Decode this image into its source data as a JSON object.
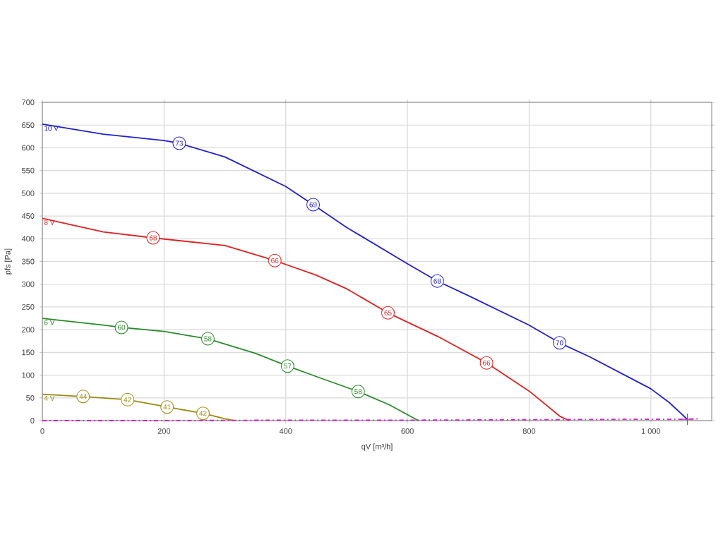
{
  "chart_data": {
    "type": "line",
    "xlabel": "qV [m³/h]",
    "ylabel": "pfs [Pa]",
    "xlim": [
      0,
      1100
    ],
    "ylim": [
      0,
      700
    ],
    "xticks": [
      0,
      200,
      400,
      600,
      800,
      {
        "value": 1000,
        "label": "1 000"
      }
    ],
    "yticks": [
      0,
      50,
      100,
      150,
      200,
      250,
      300,
      350,
      400,
      450,
      500,
      550,
      600,
      650,
      700
    ],
    "grid": true,
    "line_style": "solid",
    "series": [
      {
        "name": "10 V",
        "color": "#2020d0",
        "x": [
          0,
          100,
          200,
          225,
          300,
          400,
          445,
          500,
          600,
          649,
          700,
          800,
          850,
          900,
          1000,
          1030,
          1060
        ],
        "values": [
          652,
          630,
          616,
          610,
          580,
          515,
          475,
          425,
          345,
          307,
          275,
          210,
          171,
          140,
          70,
          40,
          3
        ]
      },
      {
        "name": "8 V",
        "color": "#e02020",
        "x": [
          0,
          100,
          182,
          300,
          382,
          450,
          500,
          568,
          650,
          730,
          800,
          850,
          866
        ],
        "values": [
          445,
          415,
          402,
          385,
          352,
          320,
          290,
          237,
          185,
          127,
          65,
          10,
          0
        ]
      },
      {
        "name": "6 V",
        "color": "#2a8a2a",
        "x": [
          0,
          100,
          130,
          200,
          272,
          350,
          403,
          450,
          519,
          570,
          618
        ],
        "values": [
          225,
          210,
          205,
          196,
          180,
          148,
          120,
          97,
          64,
          35,
          0
        ]
      },
      {
        "name": "4 V",
        "color": "#9a8a10",
        "x": [
          0,
          50,
          67,
          140,
          205,
          264,
          300,
          315
        ],
        "values": [
          58,
          54,
          53,
          46,
          30,
          16,
          4,
          0
        ]
      },
      {
        "color": "#d020d0",
        "line_style": "dashed",
        "x": [
          0,
          200,
          400,
          600,
          800,
          1000,
          1060,
          1080
        ],
        "values": [
          0,
          0,
          1,
          1,
          2,
          3,
          3,
          4
        ]
      },
      {
        "type": "scatter",
        "marker": "cross",
        "color": "#d020d0",
        "x": [
          1060
        ],
        "values": [
          3
        ]
      }
    ],
    "annotations": [
      {
        "text": "73",
        "x": 225,
        "y": 610
      },
      {
        "text": "69",
        "x": 445,
        "y": 475
      },
      {
        "text": "68",
        "x": 649,
        "y": 307
      },
      {
        "text": "70",
        "x": 850,
        "y": 171
      },
      {
        "text": "68",
        "x": 182,
        "y": 402
      },
      {
        "text": "66",
        "x": 382,
        "y": 352
      },
      {
        "text": "65",
        "x": 568,
        "y": 237
      },
      {
        "text": "66",
        "x": 730,
        "y": 127
      },
      {
        "text": "60",
        "x": 130,
        "y": 205
      },
      {
        "text": "58",
        "x": 272,
        "y": 180
      },
      {
        "text": "57",
        "x": 403,
        "y": 120
      },
      {
        "text": "58",
        "x": 519,
        "y": 64
      },
      {
        "text": "44",
        "x": 67,
        "y": 53
      },
      {
        "text": "42",
        "x": 140,
        "y": 46
      },
      {
        "text": "41",
        "x": 205,
        "y": 30
      },
      {
        "text": "42",
        "x": 264,
        "y": 16
      }
    ]
  }
}
